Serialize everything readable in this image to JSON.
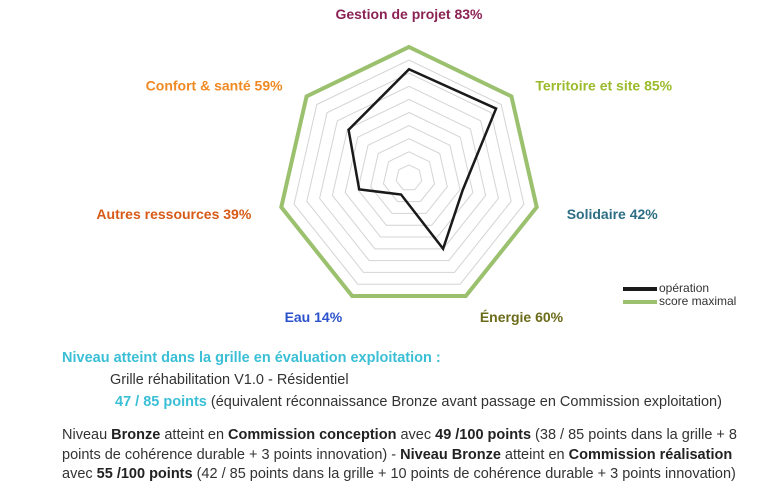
{
  "chart_data": {
    "type": "radar",
    "axes": [
      {
        "label": "Gestion de projet 83%",
        "value": 83,
        "color": "#8b2254"
      },
      {
        "label": "Territoire et site 85%",
        "value": 85,
        "color": "#9bbb2c"
      },
      {
        "label": "Solidaire 42%",
        "value": 42,
        "color": "#2d6e85"
      },
      {
        "label": "Énergie 60%",
        "value": 60,
        "color": "#6b6b1a"
      },
      {
        "label": "Eau 14%",
        "value": 14,
        "color": "#2b52cc"
      },
      {
        "label": "Autres ressources 39%",
        "value": 39,
        "color": "#d75a18"
      },
      {
        "label": "Confort & santé 59%",
        "value": 59,
        "color": "#f08a24"
      }
    ],
    "series": [
      {
        "name": "opération",
        "values": [
          83,
          85,
          42,
          60,
          14,
          39,
          59
        ],
        "color": "#1a1a1a"
      },
      {
        "name": "score maximal",
        "values": [
          100,
          100,
          100,
          100,
          100,
          100,
          100
        ],
        "color": "#9bc16f"
      }
    ],
    "rlim": [
      0,
      100
    ],
    "grid_levels": 10,
    "legend_position": "bottom-right"
  },
  "summary": {
    "heading": "Niveau atteint dans la grille en évaluation exploitation :",
    "grid_name": "Grille réhabilitation V1.0 - Résidentiel",
    "points": "47 / 85 points",
    "points_note": " (équivalent réconnaissance Bronze avant passage en Commission exploitation)",
    "p1": "Niveau ",
    "p2": "Bronze",
    "p3": " atteint en ",
    "p4": "Commission conception",
    "p5": " avec ",
    "p6": "49 /100 points",
    "p7": " (38 / 85 points dans la grille + 8 points de cohérence durable + 3 points innovation) - ",
    "p8": "Niveau Bronze",
    "p9": " atteint en ",
    "p10": "Commission réalisation",
    "p11": " avec ",
    "p12": "55 /100 points",
    "p13": " (42 / 85 points dans la grille + 10 points de cohérence durable + 3 points innovation)"
  }
}
